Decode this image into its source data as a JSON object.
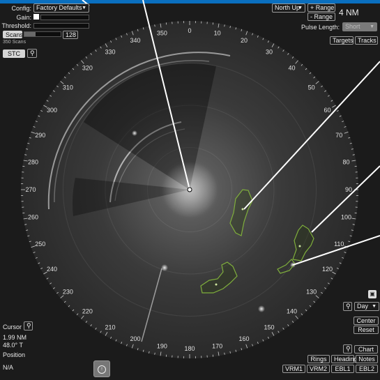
{
  "config": {
    "label": "Config:",
    "value": "Factory Defaults"
  },
  "gain": {
    "label": "Gain:"
  },
  "threshold": {
    "label": "Threshold:"
  },
  "scans": {
    "button": "Scans",
    "value": "128",
    "caption": "350 Scans"
  },
  "stc": {
    "button": "STC"
  },
  "orientation": {
    "value": "North Up"
  },
  "range": {
    "plus": "+ Range",
    "minus": "- Range",
    "value": "4 NM"
  },
  "pulse": {
    "label": "Pulse Length:",
    "value": "Short"
  },
  "targets_button": "Targets",
  "tracks_button": "Tracks",
  "cursor": {
    "label": "Cursor",
    "distance": "1.99 NM",
    "bearing": "48.0° T"
  },
  "position": {
    "label": "Position",
    "value": "N/A"
  },
  "palette": {
    "value": "Day"
  },
  "center_button": "Center",
  "reset_button": "Reset",
  "chart_button": "Chart",
  "bottom_row1": {
    "rings": "Rings",
    "heading": "Heading",
    "notes": "Notes"
  },
  "bottom_row2": {
    "vrm1": "VRM1",
    "vrm2": "VRM2",
    "ebl1": "EBL1",
    "ebl2": "EBL2"
  },
  "bearings": [
    "0",
    "10",
    "20",
    "30",
    "40",
    "50",
    "60",
    "70",
    "80",
    "90",
    "100",
    "110",
    "120",
    "130",
    "140",
    "150",
    "160",
    "170",
    "180",
    "190",
    "200",
    "210",
    "220",
    "230",
    "240",
    "250",
    "260",
    "270",
    "280",
    "290",
    "300",
    "310",
    "320",
    "330",
    "340",
    "350"
  ],
  "colors": {
    "accent": "#0a6fbf",
    "target_outline": "#7fae3c",
    "background": "#1b1b1b"
  }
}
